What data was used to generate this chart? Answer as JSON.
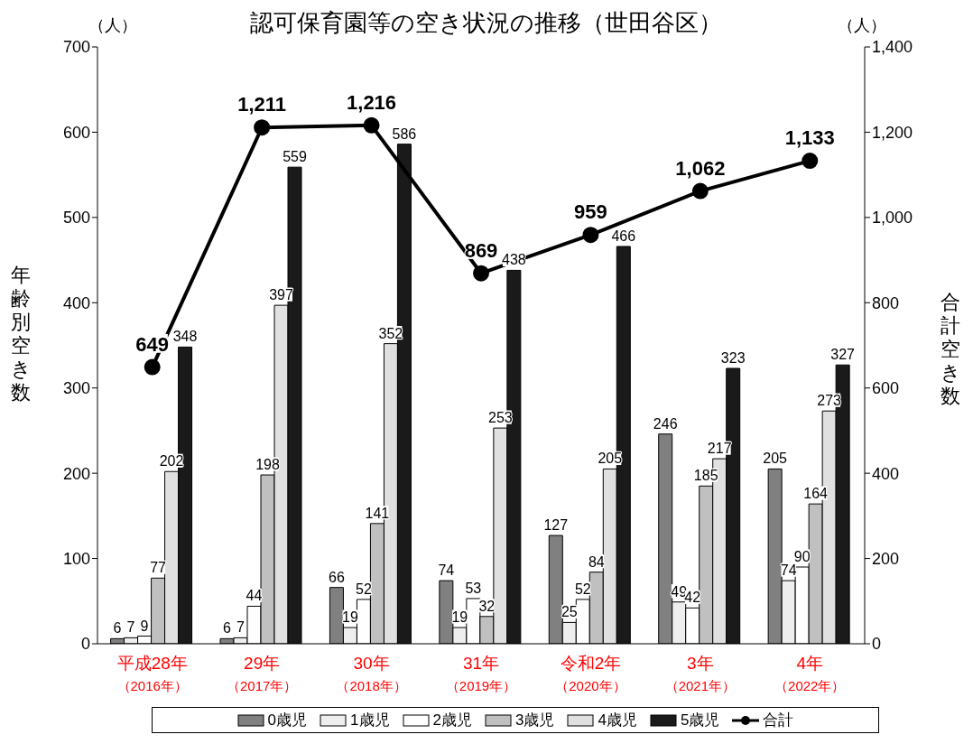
{
  "chart_data": {
    "type": "bar",
    "title": "認可保育園等の空き状況の推移（世田谷区）",
    "ylabel": "年齢別空き数",
    "y2label": "合計空き数",
    "annotations": [
      "（人）",
      "（人）"
    ],
    "categories": [
      "平成28年（2016年）",
      "29年（2017年）",
      "30年（2018年）",
      "31年（2019年）",
      "令和2年（2020年）",
      "3年（2021年）",
      "4年（2022年）"
    ],
    "series": [
      {
        "name": "0歳児",
        "color": "#808080",
        "values": [
          6,
          6,
          66,
          74,
          127,
          246,
          205
        ]
      },
      {
        "name": "1歳児",
        "color": "#eeeeee",
        "values": [
          7,
          7,
          19,
          19,
          25,
          49,
          74
        ]
      },
      {
        "name": "2歳児",
        "color": "#ffffff",
        "values": [
          9,
          44,
          52,
          53,
          52,
          42,
          90
        ]
      },
      {
        "name": "3歳児",
        "color": "#c0c0c0",
        "values": [
          77,
          198,
          141,
          32,
          84,
          185,
          164
        ]
      },
      {
        "name": "4歳児",
        "color": "#e0e0e0",
        "values": [
          202,
          397,
          352,
          253,
          205,
          217,
          273
        ]
      },
      {
        "name": "5歳児",
        "color": "#1a1a1a",
        "values": [
          348,
          559,
          586,
          438,
          466,
          323,
          327
        ]
      },
      {
        "name": "合計",
        "type": "line",
        "axis": "y2",
        "color": "#000000",
        "values": [
          649,
          1211,
          1216,
          869,
          959,
          1062,
          1133
        ],
        "value_labels": [
          "649",
          "1,211",
          "1,216",
          "869",
          "959",
          "1,062",
          "1,133"
        ]
      }
    ],
    "ylim": [
      0,
      700
    ],
    "yticks": [
      0,
      100,
      200,
      300,
      400,
      500,
      600,
      700
    ],
    "y2lim": [
      0,
      1400
    ],
    "y2ticks": [
      0,
      200,
      400,
      600,
      800,
      {
        "value": 1000,
        "label": "1,000"
      },
      {
        "value": 1200,
        "label": "1,200"
      },
      {
        "value": 1400,
        "label": "1,400"
      }
    ],
    "data_labels": true,
    "legend": "bottom",
    "marker": "circle",
    "grid": false
  }
}
